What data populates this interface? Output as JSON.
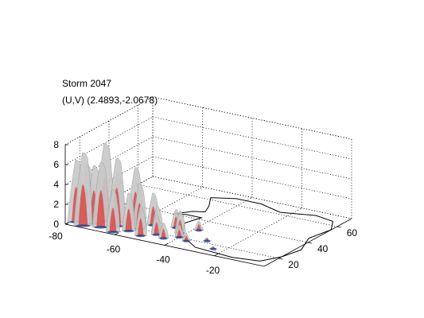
{
  "chart_data": {
    "type": "surface",
    "title_lines": [
      "Storm 2047",
      "(U,V) (2.4893,-2.0678)"
    ],
    "axes": {
      "x": {
        "ticks": [
          -80,
          -60,
          -40,
          -20
        ],
        "range": [
          -80,
          0
        ]
      },
      "y": {
        "ticks": [
          20,
          40,
          60
        ],
        "range": [
          10,
          70
        ]
      },
      "z": {
        "ticks": [
          0,
          2,
          4,
          6,
          8
        ],
        "range": [
          0,
          8
        ]
      }
    },
    "grid": "dotted",
    "box": true,
    "colors": {
      "surface_grey": "#c8c8c8",
      "surface_red": "#d94a4a",
      "base_blue": "#1f3f8f",
      "contour": "#000000"
    },
    "columns": [
      {
        "x": -78,
        "y": 14,
        "z": 6.2
      },
      {
        "x": -76,
        "y": 18,
        "z": 5.5
      },
      {
        "x": -74,
        "y": 12,
        "z": 7.3
      },
      {
        "x": -72,
        "y": 16,
        "z": 5.8
      },
      {
        "x": -70,
        "y": 20,
        "z": 7.8
      },
      {
        "x": -68,
        "y": 14,
        "z": 6.5
      },
      {
        "x": -66,
        "y": 22,
        "z": 4.9
      },
      {
        "x": -64,
        "y": 18,
        "z": 6.8
      },
      {
        "x": -62,
        "y": 12,
        "z": 4.2
      },
      {
        "x": -60,
        "y": 24,
        "z": 5.6
      },
      {
        "x": -58,
        "y": 16,
        "z": 3.8
      },
      {
        "x": -56,
        "y": 20,
        "z": 4.5
      },
      {
        "x": -54,
        "y": 26,
        "z": 3.2
      },
      {
        "x": -52,
        "y": 14,
        "z": 2.9
      },
      {
        "x": -50,
        "y": 22,
        "z": 2.4
      },
      {
        "x": -48,
        "y": 18,
        "z": 2.0
      },
      {
        "x": -46,
        "y": 28,
        "z": 1.8
      },
      {
        "x": -44,
        "y": 16,
        "z": 1.5
      },
      {
        "x": -42,
        "y": 24,
        "z": 2.2
      },
      {
        "x": -40,
        "y": 20,
        "z": 1.2
      },
      {
        "x": -38,
        "y": 30,
        "z": 0.9
      },
      {
        "x": -36,
        "y": 18,
        "z": 0.7
      },
      {
        "x": -30,
        "y": 22,
        "z": 0.3
      },
      {
        "x": -24,
        "y": 16,
        "z": 0.2
      }
    ],
    "contour": [
      [
        -52,
        62
      ],
      [
        -44,
        66
      ],
      [
        -34,
        66
      ],
      [
        -24,
        62
      ],
      [
        -12,
        66
      ],
      [
        -4,
        64
      ],
      [
        0,
        56
      ],
      [
        -2,
        44
      ],
      [
        2,
        32
      ],
      [
        0,
        22
      ],
      [
        -4,
        14
      ],
      [
        -14,
        12
      ],
      [
        -30,
        14
      ],
      [
        -40,
        22
      ],
      [
        -46,
        34
      ],
      [
        -44,
        42
      ],
      [
        -50,
        42
      ],
      [
        -54,
        40
      ],
      [
        -50,
        46
      ],
      [
        -46,
        48
      ],
      [
        -48,
        54
      ],
      [
        -52,
        62
      ]
    ]
  }
}
